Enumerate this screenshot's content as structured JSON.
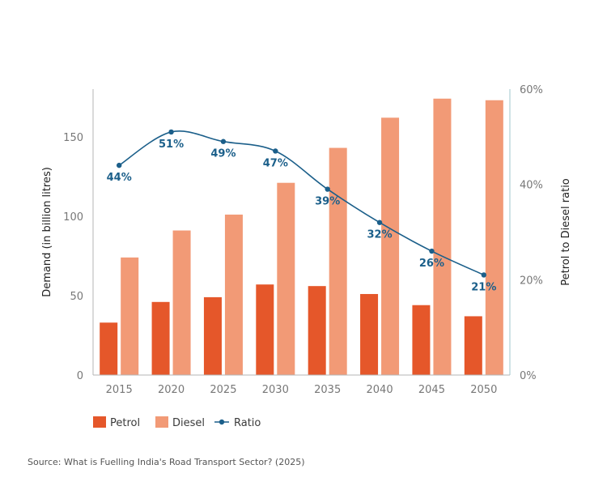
{
  "chart_data": {
    "type": "bar",
    "categories": [
      "2015",
      "2020",
      "2025",
      "2030",
      "2035",
      "2040",
      "2045",
      "2050"
    ],
    "series": [
      {
        "name": "Petrol",
        "kind": "bar",
        "axis": "left",
        "color": "#e5572a",
        "values": [
          33,
          46,
          49,
          57,
          56,
          51,
          44,
          37
        ]
      },
      {
        "name": "Diesel",
        "kind": "bar",
        "axis": "left",
        "color": "#f29a76",
        "values": [
          74,
          91,
          101,
          121,
          143,
          162,
          174,
          173
        ]
      },
      {
        "name": "Ratio",
        "kind": "line",
        "axis": "right",
        "color": "#1b5f8a",
        "values": [
          44,
          51,
          49,
          47,
          39,
          32,
          26,
          21
        ],
        "labels": [
          "44%",
          "51%",
          "49%",
          "47%",
          "39%",
          "32%",
          "26%",
          "21%"
        ]
      }
    ],
    "ylabel": "Demand (in billion litres)",
    "ylim": [
      0,
      180
    ],
    "yticks": [
      0,
      50,
      100,
      150
    ],
    "y2label": "Petrol to Diesel ratio",
    "y2lim": [
      0,
      60
    ],
    "y2ticks": [
      "0%",
      "20%",
      "40%",
      "60%"
    ],
    "legend": [
      "Petrol",
      "Diesel",
      "Ratio"
    ],
    "legend_position": "bottom-left",
    "grid": false
  },
  "source": "Source: What is Fuelling India's Road Transport Sector? (2025)"
}
